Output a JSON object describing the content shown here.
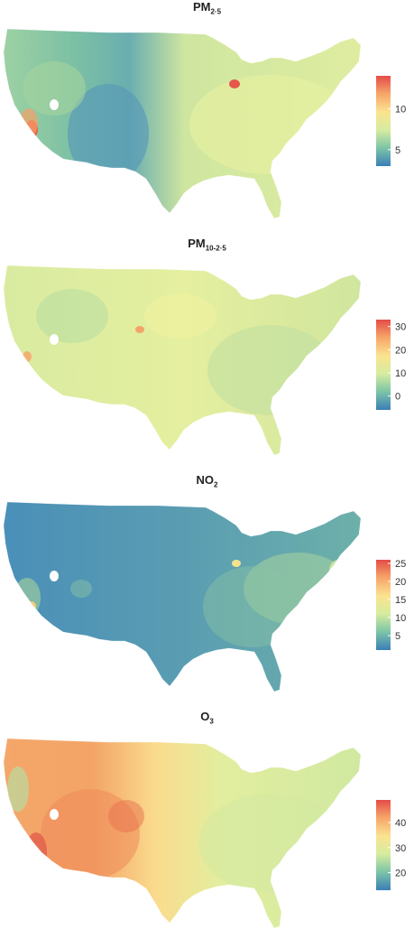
{
  "panels": [
    {
      "id": "pm25",
      "title_main": "PM",
      "title_sub": "2·5",
      "legend_ticks": [
        "10",
        "5"
      ],
      "legend_tick_values": [
        10,
        5
      ],
      "legend_range": [
        3,
        14
      ],
      "palette": [
        "#3a7fb7",
        "#7cc4a7",
        "#d6ec9f",
        "#fbe38f",
        "#f6a66a",
        "#e44c47"
      ]
    },
    {
      "id": "pm10",
      "title_main": "PM",
      "title_sub": "10-2·5",
      "legend_ticks": [
        "30",
        "20",
        "10",
        "0"
      ],
      "legend_tick_values": [
        30,
        20,
        10,
        0
      ],
      "legend_range": [
        -6,
        33
      ],
      "palette": [
        "#3a7fb7",
        "#7cc4a7",
        "#d6ec9f",
        "#fbe38f",
        "#f6a66a",
        "#e44c47"
      ]
    },
    {
      "id": "no2",
      "title_main": "NO",
      "title_sub": "2",
      "legend_ticks": [
        "25",
        "20",
        "15",
        "10",
        "5"
      ],
      "legend_tick_values": [
        25,
        20,
        15,
        10,
        5
      ],
      "legend_range": [
        1,
        26
      ],
      "palette": [
        "#3a7fb7",
        "#7cc4a7",
        "#d6ec9f",
        "#fbe38f",
        "#f6a66a",
        "#e44c47"
      ]
    },
    {
      "id": "o3",
      "title_main": "O",
      "title_sub": "3",
      "legend_ticks": [
        "40",
        "30",
        "20"
      ],
      "legend_tick_values": [
        40,
        30,
        20
      ],
      "legend_range": [
        13,
        49
      ],
      "palette": [
        "#3a7fb7",
        "#7cc4a7",
        "#d6ec9f",
        "#fbe38f",
        "#f6a66a",
        "#e44c47"
      ]
    }
  ]
}
